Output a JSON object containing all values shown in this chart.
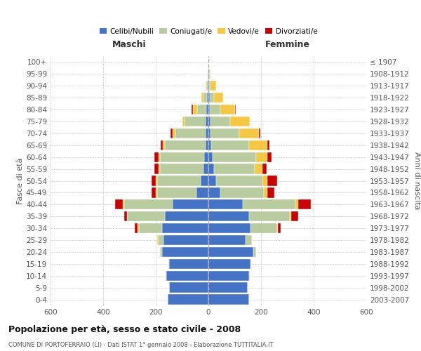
{
  "age_groups": [
    "0-4",
    "5-9",
    "10-14",
    "15-19",
    "20-24",
    "25-29",
    "30-34",
    "35-39",
    "40-44",
    "45-49",
    "50-54",
    "55-59",
    "60-64",
    "65-69",
    "70-74",
    "75-79",
    "80-84",
    "85-89",
    "90-94",
    "95-99",
    "100+"
  ],
  "birth_years": [
    "2003-2007",
    "1998-2002",
    "1993-1997",
    "1988-1992",
    "1983-1987",
    "1978-1982",
    "1973-1977",
    "1968-1972",
    "1963-1967",
    "1958-1962",
    "1953-1957",
    "1948-1952",
    "1943-1947",
    "1938-1942",
    "1933-1937",
    "1928-1932",
    "1923-1927",
    "1918-1922",
    "1913-1917",
    "1908-1912",
    "≤ 1907"
  ],
  "maschi": {
    "celibi": [
      155,
      150,
      160,
      150,
      175,
      170,
      175,
      165,
      135,
      45,
      30,
      20,
      15,
      10,
      10,
      10,
      8,
      5,
      2,
      2,
      0
    ],
    "coniugati": [
      0,
      0,
      2,
      3,
      8,
      20,
      90,
      145,
      185,
      150,
      165,
      165,
      170,
      155,
      115,
      80,
      35,
      15,
      5,
      0,
      0
    ],
    "vedovi": [
      0,
      0,
      0,
      0,
      0,
      5,
      5,
      0,
      5,
      5,
      5,
      5,
      5,
      8,
      10,
      10,
      15,
      8,
      3,
      0,
      0
    ],
    "divorziati": [
      0,
      0,
      0,
      0,
      0,
      0,
      10,
      10,
      30,
      15,
      15,
      15,
      15,
      8,
      8,
      0,
      5,
      0,
      0,
      0,
      0
    ]
  },
  "femmine": {
    "nubili": [
      155,
      150,
      155,
      160,
      170,
      140,
      160,
      155,
      130,
      45,
      30,
      20,
      15,
      10,
      8,
      8,
      5,
      5,
      3,
      2,
      0
    ],
    "coniugate": [
      0,
      0,
      2,
      3,
      10,
      25,
      100,
      155,
      200,
      165,
      175,
      155,
      165,
      145,
      110,
      75,
      40,
      15,
      5,
      2,
      0
    ],
    "vedove": [
      0,
      0,
      0,
      0,
      0,
      0,
      5,
      5,
      10,
      15,
      20,
      30,
      45,
      70,
      75,
      75,
      55,
      35,
      20,
      5,
      0
    ],
    "divorziate": [
      0,
      0,
      0,
      0,
      0,
      0,
      10,
      25,
      50,
      25,
      35,
      15,
      15,
      8,
      5,
      0,
      5,
      0,
      0,
      0,
      0
    ]
  },
  "colors": {
    "celibi": "#4472C4",
    "coniugati": "#B8CCa0",
    "vedovi": "#F5C842",
    "divorziati": "#CC0000"
  },
  "title": "Popolazione per età, sesso e stato civile - 2008",
  "subtitle": "COMUNE DI PORTOFERRAIO (LI) - Dati ISTAT 1° gennaio 2008 - Elaborazione TUTTITALIA.IT",
  "xlabel_left": "Maschi",
  "xlabel_right": "Femmine",
  "ylabel_left": "Fasce di età",
  "ylabel_right": "Anni di nascita",
  "xlim": 600,
  "background_color": "#ffffff",
  "grid_color": "#cccccc"
}
